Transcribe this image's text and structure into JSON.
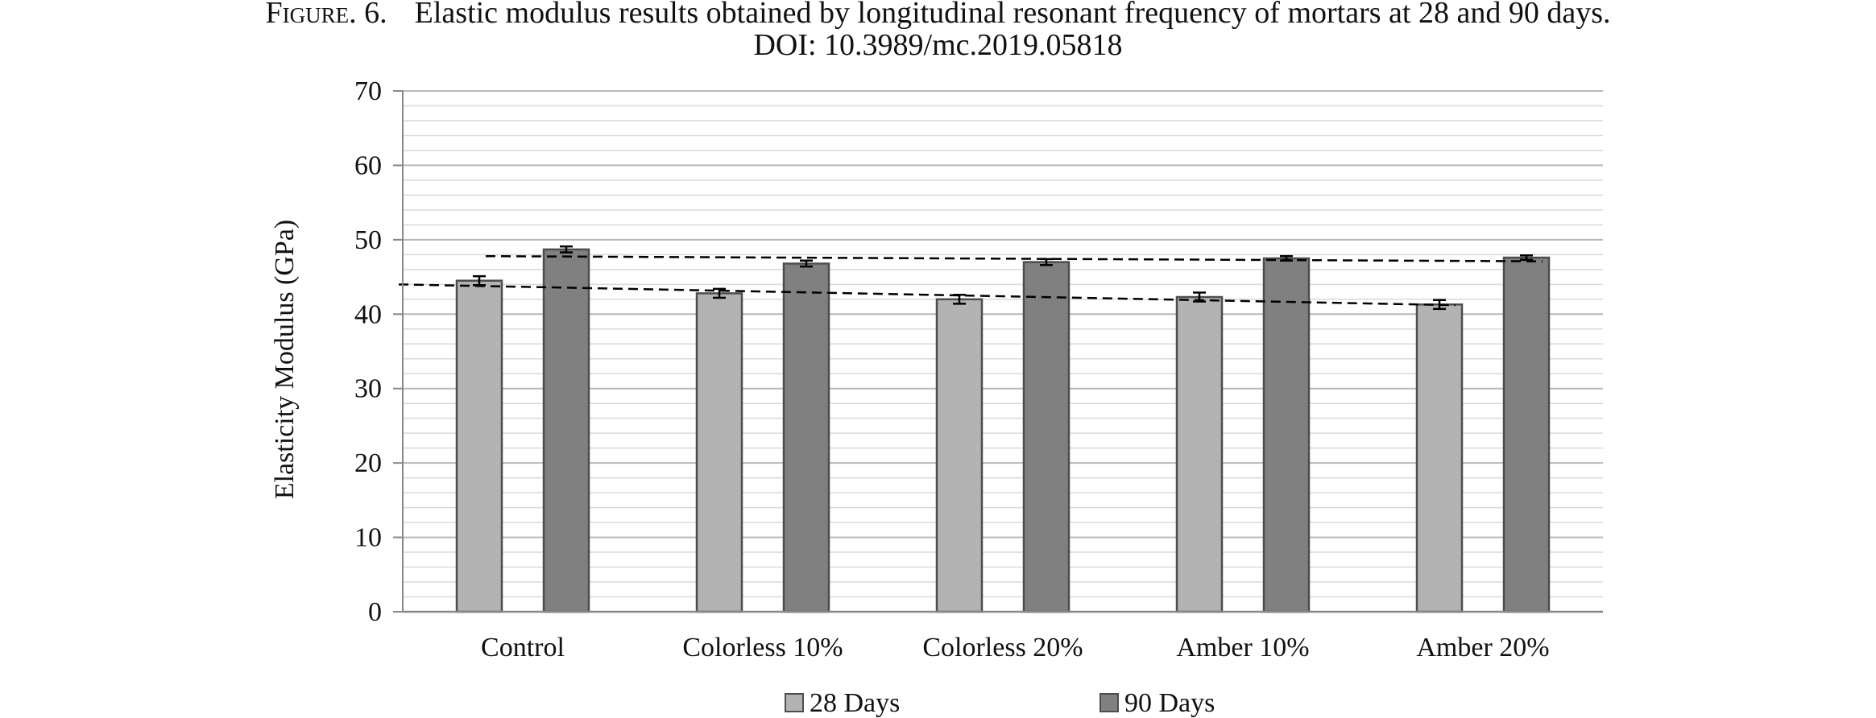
{
  "caption": {
    "figure_label": "Figure. 6.",
    "line1": "Elastic modulus results obtained by longitudinal resonant frequency of mortars at 28 and 90 days.",
    "line2": "DOI: 10.3989/mc.2019.05818"
  },
  "chart_data": {
    "type": "bar",
    "title": "",
    "xlabel": "",
    "ylabel": "Elasticity Modulus (GPa)",
    "ylim": [
      0,
      70
    ],
    "yticks": [
      0,
      10,
      20,
      30,
      40,
      50,
      60,
      70
    ],
    "minor_grid_step": 2,
    "grid": true,
    "legend_position": "bottom",
    "categories": [
      "Control",
      "Colorless 10%",
      "Colorless 20%",
      "Amber 10%",
      "Amber 20%"
    ],
    "series": [
      {
        "name": "28 Days",
        "color": "#b3b3b3",
        "values": [
          44.5,
          42.8,
          42.0,
          42.3,
          41.3
        ],
        "errors": [
          0.6,
          0.6,
          0.6,
          0.6,
          0.6
        ],
        "trendline": {
          "from": 44.0,
          "to": 41.2
        }
      },
      {
        "name": "90 Days",
        "color": "#808080",
        "values": [
          48.7,
          46.8,
          47.0,
          47.5,
          47.6
        ],
        "errors": [
          0.4,
          0.4,
          0.4,
          0.3,
          0.3
        ],
        "trendline": {
          "from": 47.8,
          "to": 47.1
        }
      }
    ]
  }
}
